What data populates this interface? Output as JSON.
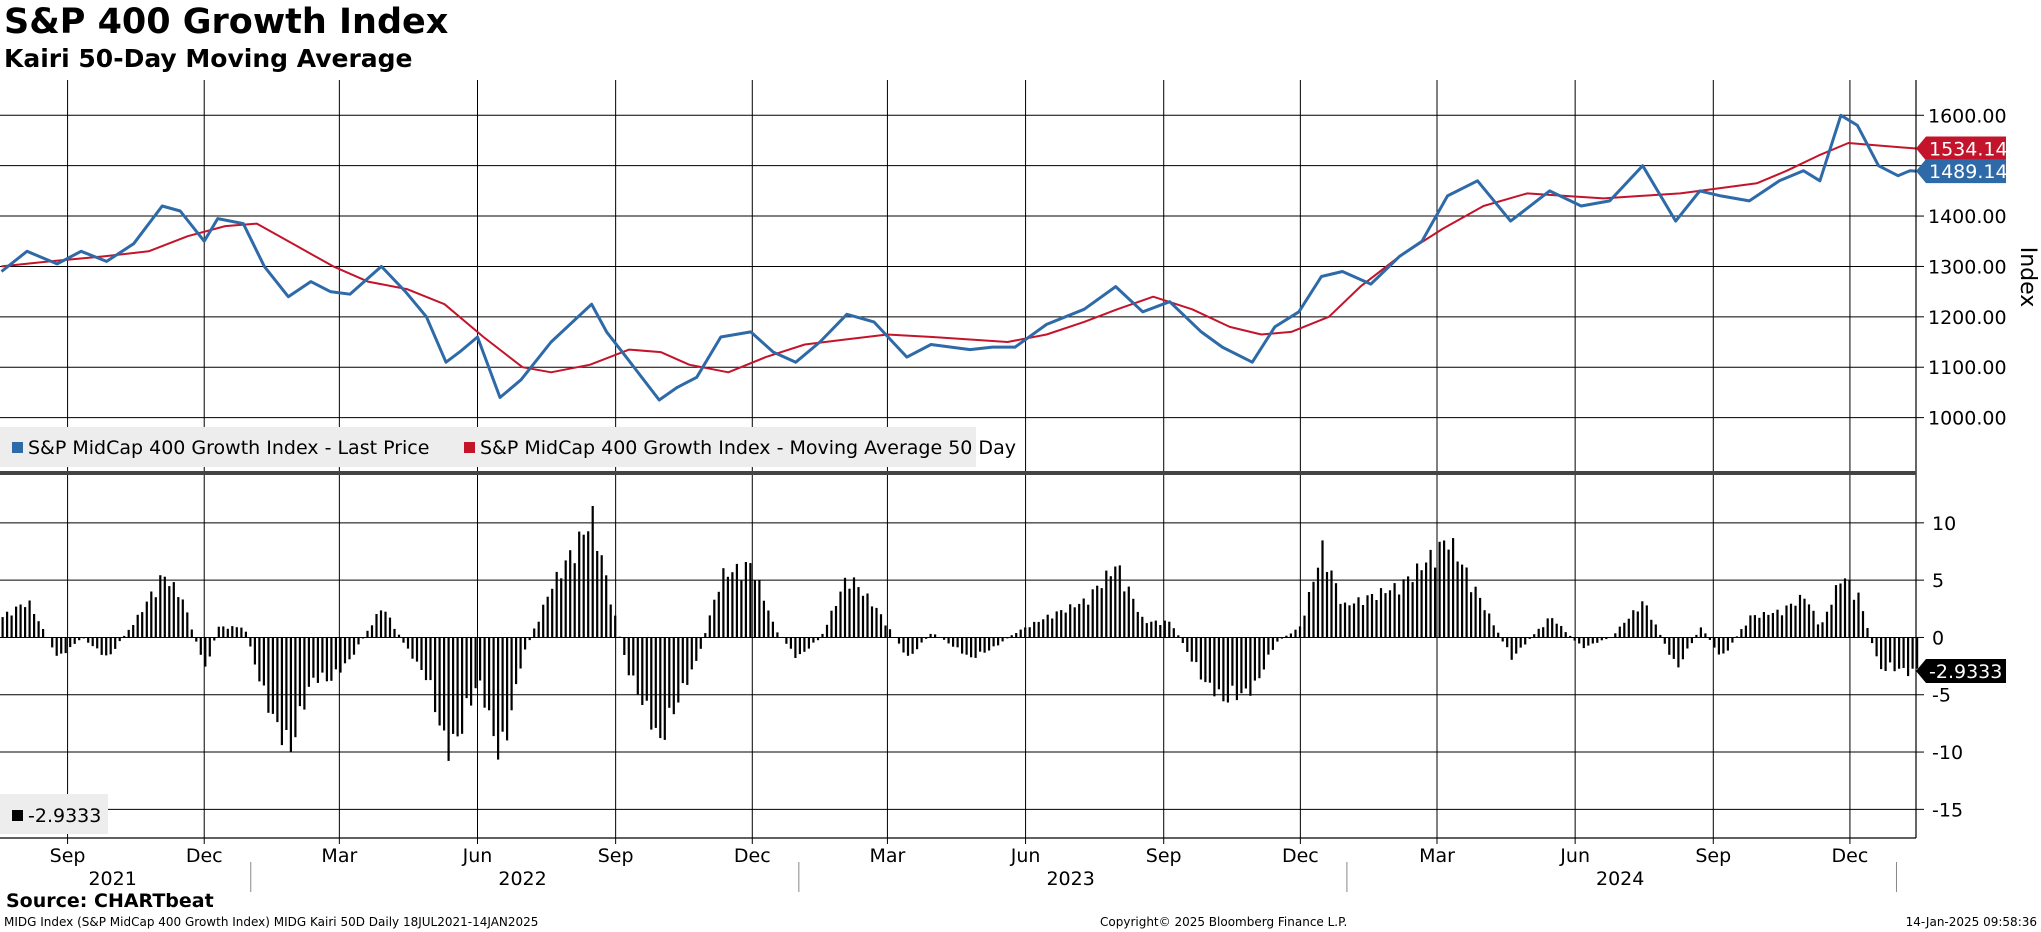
{
  "header": {
    "title": "S&P 400 Growth Index",
    "subtitle": "Kairi 50-Day Moving Average"
  },
  "footer": {
    "source": "Source: CHARTbeat",
    "left": "MIDG Index (S&P MidCap 400 Growth Index) MIDG Kairi 50D  Daily 18JUL2021-14JAN2025",
    "center": "Copyright© 2025 Bloomberg Finance L.P.",
    "right": "14-Jan-2025 09:58:36"
  },
  "colors": {
    "price": "#2e6aa8",
    "moving_average": "#c4142b",
    "kairi": "#000000",
    "grid": "#000000"
  },
  "chart_data": [
    {
      "type": "line",
      "ylabel": "Index",
      "ylim": [
        900,
        1670
      ],
      "yticks": [
        1000,
        1100,
        1200,
        1300,
        1400,
        1500,
        1600
      ],
      "ytick_labels": [
        "1000.00",
        "1100.00",
        "1200.00",
        "1300.00",
        "1400.00",
        "1500.00",
        "1600.00"
      ],
      "x_start": "2021-07-18",
      "x_end": "2025-01-14",
      "grid": true,
      "legend_position": "bottom-left",
      "last_value_labels": [
        {
          "series": "S&P MidCap 400 Growth Index - Moving Average 50 Day",
          "text": "1534.14",
          "value": 1534.14
        },
        {
          "series": "S&P MidCap 400 Growth Index - Last Price",
          "text": "1489.14",
          "value": 1489.14
        }
      ],
      "series": [
        {
          "name": "S&P MidCap 400 Growth Index - Last Price",
          "x": [
            "2021-07-19",
            "2021-08-05",
            "2021-08-25",
            "2021-09-10",
            "2021-09-27",
            "2021-10-15",
            "2021-11-03",
            "2021-11-15",
            "2021-12-01",
            "2021-12-10",
            "2021-12-27",
            "2022-01-10",
            "2022-01-26",
            "2022-02-10",
            "2022-02-23",
            "2022-03-08",
            "2022-03-29",
            "2022-04-14",
            "2022-04-28",
            "2022-05-11",
            "2022-05-20",
            "2022-06-01",
            "2022-06-16",
            "2022-06-30",
            "2022-07-20",
            "2022-08-16",
            "2022-08-26",
            "2022-09-08",
            "2022-09-30",
            "2022-10-12",
            "2022-10-25",
            "2022-11-10",
            "2022-11-30",
            "2022-12-15",
            "2022-12-30",
            "2023-01-15",
            "2023-02-02",
            "2023-02-20",
            "2023-03-14",
            "2023-03-30",
            "2023-04-25",
            "2023-05-10",
            "2023-05-25",
            "2023-06-15",
            "2023-07-10",
            "2023-07-31",
            "2023-08-18",
            "2023-09-05",
            "2023-09-26",
            "2023-10-10",
            "2023-10-30",
            "2023-11-14",
            "2023-11-30",
            "2023-12-15",
            "2023-12-29",
            "2024-01-17",
            "2024-02-05",
            "2024-02-20",
            "2024-03-08",
            "2024-03-28",
            "2024-04-19",
            "2024-05-15",
            "2024-06-05",
            "2024-06-24",
            "2024-07-16",
            "2024-08-07",
            "2024-08-23",
            "2024-09-06",
            "2024-09-25",
            "2024-10-15",
            "2024-10-31",
            "2024-11-11",
            "2024-11-25",
            "2024-12-06",
            "2024-12-20",
            "2025-01-02",
            "2025-01-10",
            "2025-01-14"
          ],
          "values": [
            1290,
            1330,
            1305,
            1330,
            1310,
            1345,
            1420,
            1410,
            1350,
            1395,
            1385,
            1300,
            1240,
            1270,
            1250,
            1245,
            1300,
            1250,
            1200,
            1110,
            1130,
            1160,
            1040,
            1075,
            1150,
            1225,
            1170,
            1120,
            1035,
            1060,
            1080,
            1160,
            1170,
            1130,
            1110,
            1150,
            1205,
            1190,
            1120,
            1145,
            1135,
            1140,
            1140,
            1185,
            1215,
            1260,
            1210,
            1230,
            1170,
            1140,
            1110,
            1180,
            1210,
            1280,
            1290,
            1265,
            1320,
            1350,
            1440,
            1470,
            1390,
            1450,
            1420,
            1430,
            1500,
            1390,
            1450,
            1440,
            1430,
            1470,
            1490,
            1470,
            1600,
            1580,
            1500,
            1480,
            1490,
            1489.14
          ]
        },
        {
          "name": "S&P MidCap 400 Growth Index - Moving Average 50 Day",
          "x": [
            "2021-07-19",
            "2021-08-20",
            "2021-09-25",
            "2021-10-25",
            "2021-11-20",
            "2021-12-15",
            "2022-01-05",
            "2022-02-01",
            "2022-02-25",
            "2022-03-20",
            "2022-04-15",
            "2022-05-10",
            "2022-06-05",
            "2022-07-01",
            "2022-07-20",
            "2022-08-15",
            "2022-09-10",
            "2022-10-01",
            "2022-10-20",
            "2022-11-15",
            "2022-12-10",
            "2023-01-05",
            "2023-02-01",
            "2023-03-01",
            "2023-03-31",
            "2023-04-25",
            "2023-05-20",
            "2023-06-15",
            "2023-07-10",
            "2023-08-01",
            "2023-08-25",
            "2023-09-20",
            "2023-10-15",
            "2023-11-05",
            "2023-11-25",
            "2023-12-20",
            "2024-01-10",
            "2024-02-05",
            "2024-03-05",
            "2024-04-01",
            "2024-04-30",
            "2024-05-25",
            "2024-06-20",
            "2024-07-15",
            "2024-08-10",
            "2024-09-05",
            "2024-09-30",
            "2024-10-20",
            "2024-11-10",
            "2024-11-30",
            "2024-12-20",
            "2025-01-14"
          ],
          "values": [
            1300,
            1310,
            1320,
            1330,
            1360,
            1380,
            1385,
            1340,
            1300,
            1270,
            1255,
            1225,
            1160,
            1100,
            1090,
            1105,
            1135,
            1130,
            1105,
            1090,
            1120,
            1145,
            1155,
            1165,
            1160,
            1155,
            1150,
            1165,
            1190,
            1215,
            1240,
            1215,
            1180,
            1165,
            1170,
            1200,
            1260,
            1320,
            1375,
            1420,
            1445,
            1440,
            1435,
            1440,
            1445,
            1455,
            1465,
            1490,
            1520,
            1545,
            1540,
            1534.14
          ]
        }
      ]
    },
    {
      "type": "bar",
      "ylim": [
        -17.5,
        14
      ],
      "yticks": [
        -15,
        -10,
        -5,
        0,
        5,
        10
      ],
      "ytick_labels": [
        "-15",
        "-10",
        "-5",
        "0",
        "5",
        "10"
      ],
      "x_start": "2021-07-18",
      "x_end": "2025-01-14",
      "legend_position": "bottom-left",
      "last_value_label": {
        "text": "-2.9333",
        "value": -2.9333
      },
      "series": [
        {
          "name": "-2.9333",
          "x": [
            "2021-07-19",
            "2021-08-05",
            "2021-08-25",
            "2021-09-10",
            "2021-09-27",
            "2021-10-15",
            "2021-11-03",
            "2021-11-15",
            "2021-12-01",
            "2021-12-10",
            "2021-12-27",
            "2022-01-10",
            "2022-01-26",
            "2022-02-10",
            "2022-02-23",
            "2022-03-08",
            "2022-03-29",
            "2022-04-14",
            "2022-04-28",
            "2022-05-11",
            "2022-05-20",
            "2022-06-01",
            "2022-06-16",
            "2022-06-30",
            "2022-07-20",
            "2022-08-16",
            "2022-08-26",
            "2022-09-08",
            "2022-09-30",
            "2022-10-12",
            "2022-10-25",
            "2022-11-10",
            "2022-11-30",
            "2022-12-15",
            "2022-12-30",
            "2023-01-15",
            "2023-02-02",
            "2023-02-20",
            "2023-03-14",
            "2023-03-30",
            "2023-04-25",
            "2023-05-10",
            "2023-05-25",
            "2023-06-15",
            "2023-07-10",
            "2023-07-31",
            "2023-08-18",
            "2023-09-05",
            "2023-09-26",
            "2023-10-10",
            "2023-10-30",
            "2023-11-14",
            "2023-11-30",
            "2023-12-15",
            "2023-12-29",
            "2024-01-17",
            "2024-02-05",
            "2024-02-20",
            "2024-03-08",
            "2024-03-28",
            "2024-04-19",
            "2024-05-15",
            "2024-06-05",
            "2024-06-24",
            "2024-07-16",
            "2024-08-07",
            "2024-08-23",
            "2024-09-06",
            "2024-09-25",
            "2024-10-15",
            "2024-10-31",
            "2024-11-11",
            "2024-11-25",
            "2024-12-06",
            "2024-12-20",
            "2025-01-02",
            "2025-01-10",
            "2025-01-14"
          ],
          "values": [
            2,
            3.5,
            -2,
            0,
            -2,
            1.5,
            6,
            4,
            -3,
            1,
            1,
            -6,
            -11,
            -4,
            -4,
            -2,
            3,
            -1,
            -4,
            -11,
            -9,
            -4,
            -12,
            -2,
            5,
            11.5,
            5,
            -3,
            -10,
            -6,
            -2,
            6,
            7,
            1,
            -2,
            0,
            6,
            3,
            -2,
            0.5,
            -2,
            -1,
            0.5,
            2,
            3.5,
            7,
            1.5,
            1.5,
            -4,
            -6,
            -5,
            -0.5,
            1,
            8.5,
            3,
            4,
            5,
            7,
            9.5,
            4,
            -2,
            2,
            -1,
            0,
            3.5,
            -3,
            1,
            -2,
            2,
            2.5,
            4,
            1,
            6,
            4,
            -3,
            -3,
            -3.5,
            -2.9333
          ]
        }
      ]
    }
  ],
  "x_axis": {
    "months": [
      {
        "label": "Sep",
        "date": "2021-09-01"
      },
      {
        "label": "Dec",
        "date": "2021-12-01"
      },
      {
        "label": "Mar",
        "date": "2022-03-01"
      },
      {
        "label": "Jun",
        "date": "2022-06-01"
      },
      {
        "label": "Sep",
        "date": "2022-09-01"
      },
      {
        "label": "Dec",
        "date": "2022-12-01"
      },
      {
        "label": "Mar",
        "date": "2023-03-01"
      },
      {
        "label": "Jun",
        "date": "2023-06-01"
      },
      {
        "label": "Sep",
        "date": "2023-09-01"
      },
      {
        "label": "Dec",
        "date": "2023-12-01"
      },
      {
        "label": "Mar",
        "date": "2024-03-01"
      },
      {
        "label": "Jun",
        "date": "2024-06-01"
      },
      {
        "label": "Sep",
        "date": "2024-09-01"
      },
      {
        "label": "Dec",
        "date": "2024-12-01"
      }
    ],
    "years": [
      {
        "label": "2021",
        "date": "2021-10-01"
      },
      {
        "label": "2022",
        "date": "2022-07-01"
      },
      {
        "label": "2023",
        "date": "2023-07-01"
      },
      {
        "label": "2024",
        "date": "2024-07-01"
      }
    ],
    "year_boundaries": [
      "2022-01-01",
      "2023-01-01",
      "2024-01-01",
      "2025-01-01"
    ]
  }
}
